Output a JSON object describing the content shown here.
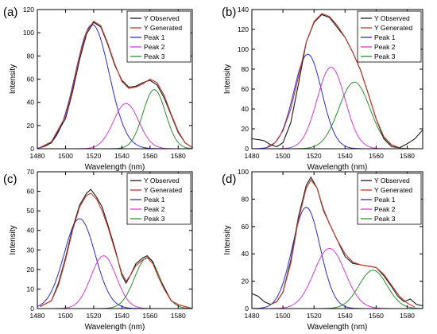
{
  "legend_entries": [
    {
      "label": "Y Observed",
      "color": "#1a1a1a"
    },
    {
      "label": "Y Generated",
      "color": "#c0392b"
    },
    {
      "label": "Peak 1",
      "color": "#2b2bd6"
    },
    {
      "label": "Peak 2",
      "color": "#d63bd6"
    },
    {
      "label": "Peak 3",
      "color": "#2e8b2e"
    }
  ],
  "chart_data": [
    {
      "panel_label": "(a)",
      "type": "line",
      "xlabel": "Wavelength (nm)",
      "ylabel": "Intensity",
      "xlim": [
        1480,
        1590
      ],
      "ylim": [
        0,
        120
      ],
      "x_ticks": [
        1480,
        1500,
        1520,
        1540,
        1560,
        1580
      ],
      "y_ticks": [
        0,
        20,
        40,
        60,
        80,
        100,
        120
      ],
      "grid": false,
      "legend_position": "top-right",
      "peaks": [
        {
          "name": "Peak 1",
          "center": 1519,
          "height": 107,
          "width": 12
        },
        {
          "name": "Peak 2",
          "center": 1543,
          "height": 39,
          "width": 9
        },
        {
          "name": "Peak 3",
          "center": 1563,
          "height": 51,
          "width": 8
        }
      ],
      "series": [
        {
          "name": "Y Observed",
          "x": [
            1482,
            1490,
            1500,
            1505,
            1510,
            1515,
            1520,
            1525,
            1530,
            1535,
            1540,
            1545,
            1550,
            1555,
            1560,
            1565,
            1570,
            1575,
            1580,
            1585,
            1590
          ],
          "y": [
            1,
            5,
            26,
            49,
            77,
            99,
            109,
            105,
            90,
            72,
            59,
            53,
            54,
            57,
            59,
            55,
            44,
            29,
            14,
            5,
            1
          ]
        },
        {
          "name": "Y Generated",
          "x": [
            1482,
            1490,
            1500,
            1505,
            1510,
            1515,
            1520,
            1525,
            1530,
            1535,
            1540,
            1545,
            1550,
            1555,
            1560,
            1565,
            1570,
            1575,
            1580,
            1585,
            1590
          ],
          "y": [
            1,
            6,
            28,
            52,
            80,
            101,
            110,
            106,
            91,
            73,
            58,
            52,
            53,
            56,
            60,
            57,
            46,
            30,
            15,
            5,
            1
          ]
        }
      ]
    },
    {
      "panel_label": "(b)",
      "type": "line",
      "xlabel": "Wavelength (nm)",
      "ylabel": "Intensity",
      "xlim": [
        1480,
        1590
      ],
      "ylim": [
        0,
        140
      ],
      "x_ticks": [
        1480,
        1500,
        1520,
        1540,
        1560,
        1580
      ],
      "y_ticks": [
        0,
        20,
        40,
        60,
        80,
        100,
        120,
        140
      ],
      "grid": false,
      "legend_position": "top-right",
      "peaks": [
        {
          "name": "Peak 1",
          "center": 1516,
          "height": 95,
          "width": 9
        },
        {
          "name": "Peak 2",
          "center": 1531,
          "height": 82,
          "width": 9
        },
        {
          "name": "Peak 3",
          "center": 1546,
          "height": 67,
          "width": 10
        }
      ],
      "series": [
        {
          "name": "Y Observed",
          "x": [
            1480,
            1485,
            1488,
            1492,
            1496,
            1500,
            1505,
            1510,
            1515,
            1520,
            1525,
            1530,
            1535,
            1540,
            1545,
            1550,
            1555,
            1560,
            1565,
            1570,
            1575,
            1580,
            1585,
            1590
          ],
          "y": [
            10,
            9,
            8,
            4,
            2,
            6,
            26,
            65,
            107,
            127,
            135,
            132,
            122,
            112,
            97,
            79,
            55,
            30,
            10,
            2,
            1,
            5,
            10,
            19
          ]
        },
        {
          "name": "Y Generated",
          "x": [
            1490,
            1495,
            1500,
            1505,
            1510,
            1515,
            1520,
            1525,
            1530,
            1535,
            1540,
            1545,
            1550,
            1555,
            1560,
            1565,
            1570,
            1575
          ],
          "y": [
            2,
            6,
            18,
            40,
            72,
            107,
            128,
            136,
            133,
            124,
            112,
            97,
            79,
            55,
            30,
            12,
            4,
            1
          ]
        }
      ]
    },
    {
      "panel_label": "(c)",
      "type": "line",
      "xlabel": "Wavelength (nm)",
      "ylabel": "Intensity",
      "xlim": [
        1480,
        1590
      ],
      "ylim": [
        0,
        70
      ],
      "x_ticks": [
        1480,
        1500,
        1520,
        1540,
        1560,
        1580
      ],
      "y_ticks": [
        0,
        10,
        20,
        30,
        40,
        50,
        60,
        70
      ],
      "grid": false,
      "legend_position": "top-right",
      "peaks": [
        {
          "name": "Peak 1",
          "center": 1510,
          "height": 46,
          "width": 11
        },
        {
          "name": "Peak 2",
          "center": 1527,
          "height": 27,
          "width": 9
        },
        {
          "name": "Peak 3",
          "center": 1558,
          "height": 26,
          "width": 9
        }
      ],
      "series": [
        {
          "name": "Y Observed",
          "x": [
            1482,
            1490,
            1495,
            1500,
            1505,
            1510,
            1515,
            1518,
            1522,
            1526,
            1530,
            1535,
            1540,
            1543,
            1546,
            1550,
            1555,
            1558,
            1562,
            1566,
            1570,
            1575,
            1580,
            1585,
            1590
          ],
          "y": [
            1,
            4,
            13,
            26,
            41,
            53,
            59,
            61,
            57,
            52,
            43,
            31,
            17,
            13,
            17,
            23,
            26,
            27,
            24,
            16,
            11,
            4,
            2,
            1,
            0
          ]
        },
        {
          "name": "Y Generated",
          "x": [
            1482,
            1490,
            1495,
            1500,
            1505,
            1510,
            1515,
            1518,
            1522,
            1526,
            1530,
            1535,
            1540,
            1543,
            1546,
            1550,
            1555,
            1558,
            1562,
            1566,
            1570,
            1575,
            1580,
            1585,
            1590
          ],
          "y": [
            1,
            4,
            12,
            25,
            40,
            52,
            58,
            59,
            56,
            50,
            42,
            30,
            18,
            14,
            17,
            22,
            25,
            26,
            23,
            16,
            10,
            4,
            2,
            1,
            0
          ]
        }
      ]
    },
    {
      "panel_label": "(d)",
      "type": "line",
      "xlabel": "Wavelength (nm)",
      "ylabel": "Intensity",
      "xlim": [
        1480,
        1590
      ],
      "ylim": [
        0,
        100
      ],
      "x_ticks": [
        1480,
        1500,
        1520,
        1540,
        1560,
        1580
      ],
      "y_ticks": [
        0,
        20,
        40,
        60,
        80,
        100
      ],
      "grid": false,
      "legend_position": "top-right",
      "peaks": [
        {
          "name": "Peak 1",
          "center": 1515,
          "height": 74,
          "width": 9
        },
        {
          "name": "Peak 2",
          "center": 1530,
          "height": 44,
          "width": 10
        },
        {
          "name": "Peak 3",
          "center": 1558,
          "height": 28,
          "width": 9
        }
      ],
      "series": [
        {
          "name": "Y Observed",
          "x": [
            1480,
            1484,
            1488,
            1492,
            1496,
            1500,
            1505,
            1510,
            1515,
            1518,
            1522,
            1526,
            1530,
            1535,
            1540,
            1545,
            1550,
            1555,
            1560,
            1565,
            1570,
            1574,
            1578,
            1582,
            1586,
            1590
          ],
          "y": [
            11,
            9,
            5,
            3,
            5,
            12,
            35,
            67,
            90,
            96,
            88,
            72,
            62,
            50,
            38,
            33,
            32,
            31,
            30,
            24,
            16,
            9,
            5,
            7,
            3,
            2
          ]
        },
        {
          "name": "Y Generated",
          "x": [
            1492,
            1496,
            1500,
            1505,
            1510,
            1515,
            1518,
            1522,
            1526,
            1530,
            1535,
            1540,
            1545,
            1550,
            1555,
            1560,
            1565,
            1570,
            1575,
            1580,
            1585
          ],
          "y": [
            3,
            5,
            12,
            33,
            65,
            88,
            94,
            88,
            73,
            62,
            50,
            40,
            34,
            32,
            31,
            30,
            25,
            17,
            9,
            4,
            1
          ]
        }
      ]
    }
  ]
}
